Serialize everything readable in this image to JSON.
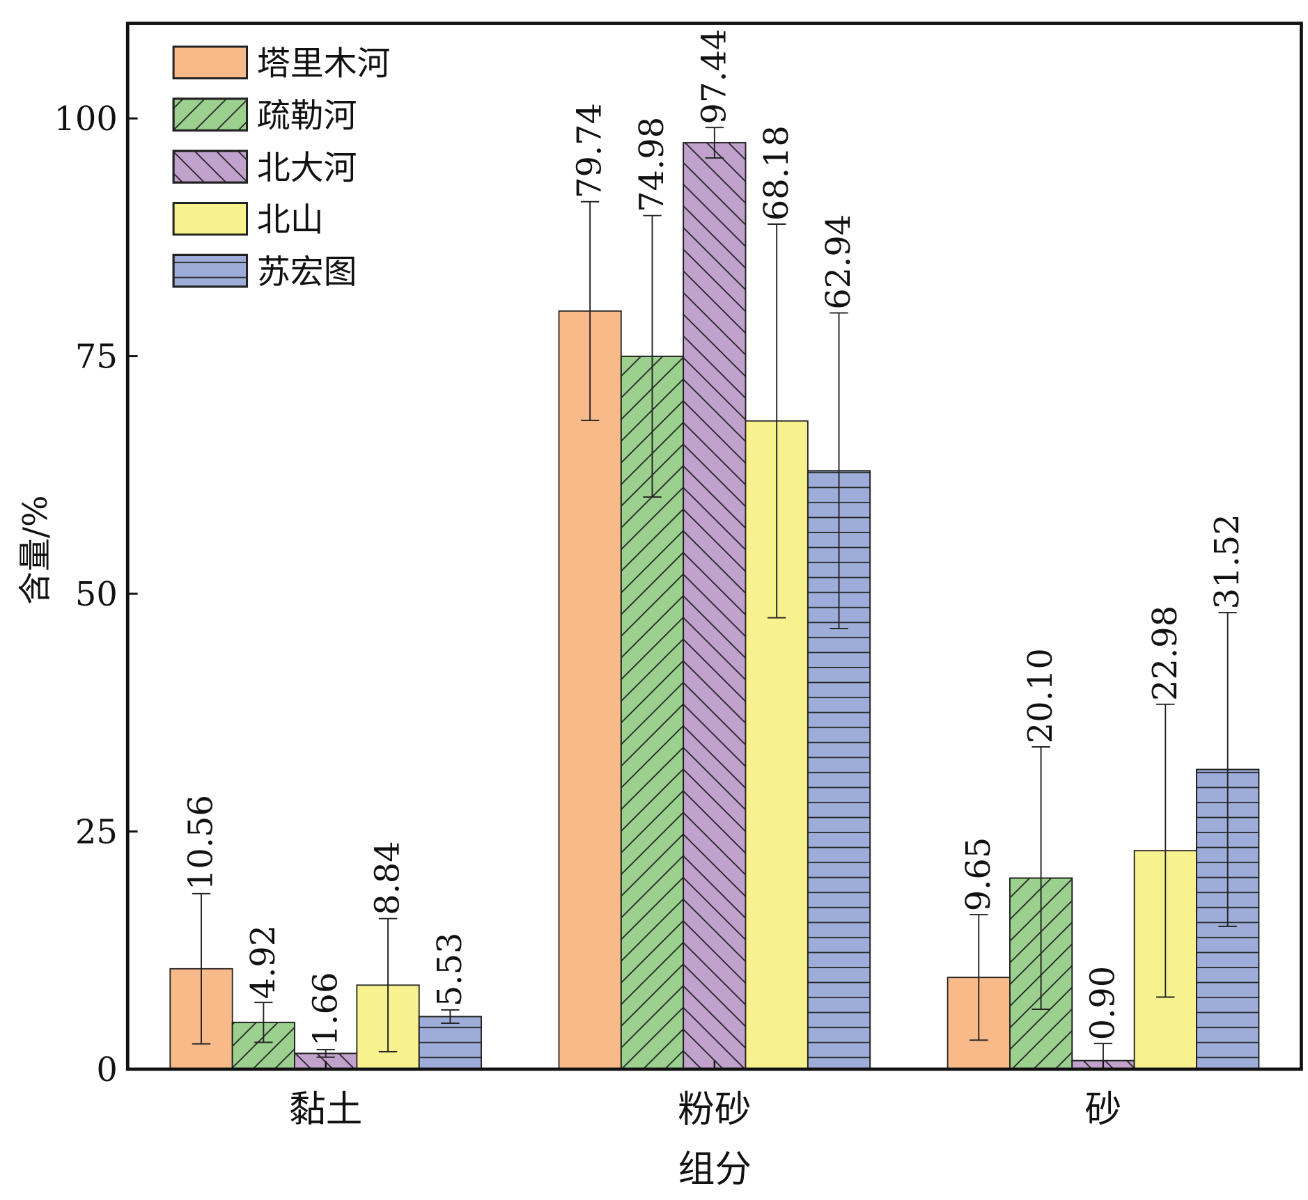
{
  "chart_data": {
    "type": "bar",
    "title": "",
    "xlabel": "组分",
    "ylabel": "含量/%",
    "ylim": [
      0,
      110
    ],
    "yticks": [
      0,
      25,
      50,
      75,
      100
    ],
    "grid": false,
    "legend_position": "top-left",
    "categories": [
      "黏土",
      "粉砂",
      "砂"
    ],
    "series": [
      {
        "name": "塔里木河",
        "color": "#F9BA8A",
        "hatch": "none",
        "values": [
          10.56,
          79.74,
          9.65
        ],
        "labels": [
          "10.56",
          "79.74",
          "9.65"
        ],
        "error": [
          7.9,
          11.5,
          6.6
        ]
      },
      {
        "name": "疏勒河",
        "color": "#9CD08F",
        "hatch": "forward",
        "values": [
          4.92,
          74.98,
          20.1
        ],
        "labels": [
          "4.92",
          "74.98",
          "20.10"
        ],
        "error": [
          2.1,
          14.8,
          13.8
        ]
      },
      {
        "name": "北大河",
        "color": "#C0A2CC",
        "hatch": "backward",
        "values": [
          1.66,
          97.44,
          0.9
        ],
        "labels": [
          "1.66",
          "97.44",
          "0.90"
        ],
        "error": [
          0.4,
          1.6,
          1.8
        ]
      },
      {
        "name": "北山",
        "color": "#F8F28E",
        "hatch": "none",
        "values": [
          8.84,
          68.18,
          22.98
        ],
        "labels": [
          "8.84",
          "68.18",
          "22.98"
        ],
        "error": [
          7.0,
          20.7,
          15.4
        ]
      },
      {
        "name": "苏宏图",
        "color": "#9DACD8",
        "hatch": "horizontal",
        "values": [
          5.53,
          62.94,
          31.52
        ],
        "labels": [
          "5.53",
          "62.94",
          "31.52"
        ],
        "error": [
          0.7,
          16.6,
          16.5
        ]
      }
    ]
  }
}
